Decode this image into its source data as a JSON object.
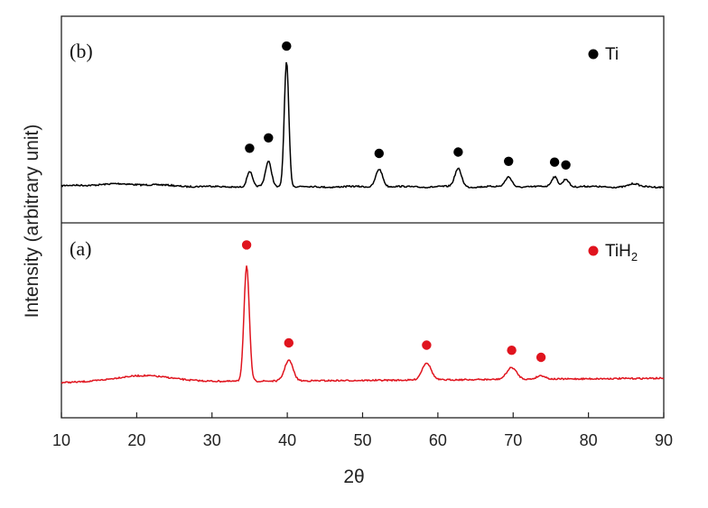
{
  "chart_data": {
    "type": "line",
    "xlabel": "2θ",
    "ylabel": "Intensity (arbitrary unit)",
    "xlim": [
      10,
      90
    ],
    "x_ticks": [
      10,
      20,
      30,
      40,
      50,
      60,
      70,
      80,
      90
    ],
    "grid": false,
    "panels": [
      {
        "label": "(b)",
        "position": "top",
        "series": [
          {
            "name": "Ti",
            "color": "#000000",
            "peaks_2theta": [
              35.0,
              37.5,
              39.9,
              52.2,
              62.7,
              69.4,
              75.5,
              77.0
            ]
          }
        ],
        "legend": {
          "entries": [
            {
              "marker_color": "#000000",
              "text": "Ti"
            }
          ],
          "placement": "top-right"
        }
      },
      {
        "label": "(a)",
        "position": "bottom",
        "series": [
          {
            "name": "TiH2",
            "color": "#e0141e",
            "peaks_2theta": [
              34.6,
              40.2,
              58.5,
              69.8,
              73.7
            ]
          }
        ],
        "legend": {
          "entries": [
            {
              "marker_color": "#e0141e",
              "text": "TiH",
              "subscript": "2"
            }
          ],
          "placement": "top-right"
        }
      }
    ]
  }
}
